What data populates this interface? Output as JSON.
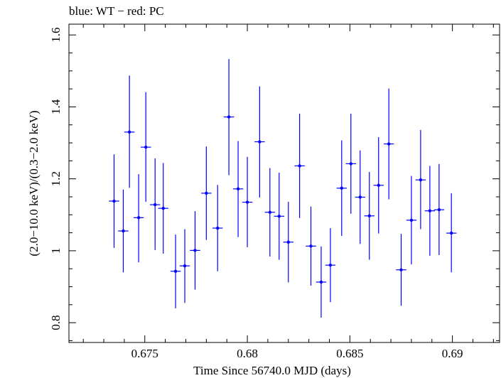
{
  "chart_data": {
    "type": "scatter",
    "title": "blue: WT − red: PC",
    "xlabel": "Time Since 56740.0 MJD (days)",
    "ylabel": "(2.0−10.0 keV)/(0.3−2.0 keV)",
    "xlim": [
      0.6713,
      0.6923
    ],
    "ylim": [
      0.745,
      1.63
    ],
    "x_ticks": [
      0.675,
      0.68,
      0.685,
      0.69
    ],
    "x_tick_labels": [
      "0.675",
      "0.68",
      "0.685",
      "0.69"
    ],
    "y_ticks": [
      0.8,
      1.0,
      1.2,
      1.4,
      1.6
    ],
    "y_tick_labels": [
      "0.8",
      "1",
      "1.2",
      "1.4",
      "1.6"
    ],
    "grid": false,
    "colors": {
      "WT": "#0000ff",
      "axes": "#000000"
    },
    "series": [
      {
        "name": "WT",
        "x_halfwidth": 0.00025,
        "points": [
          {
            "x": 0.6735,
            "y": 1.138,
            "err_lo": 1.008,
            "err_hi": 1.268
          },
          {
            "x": 0.67395,
            "y": 1.055,
            "err_lo": 0.94,
            "err_hi": 1.17
          },
          {
            "x": 0.67425,
            "y": 1.33,
            "err_lo": 1.175,
            "err_hi": 1.487
          },
          {
            "x": 0.6747,
            "y": 1.092,
            "err_lo": 0.968,
            "err_hi": 1.213
          },
          {
            "x": 0.67505,
            "y": 1.288,
            "err_lo": 1.136,
            "err_hi": 1.441
          },
          {
            "x": 0.6755,
            "y": 1.128,
            "err_lo": 1.002,
            "err_hi": 1.257
          },
          {
            "x": 0.6759,
            "y": 1.118,
            "err_lo": 0.992,
            "err_hi": 1.244
          },
          {
            "x": 0.6765,
            "y": 0.943,
            "err_lo": 0.84,
            "err_hi": 1.045
          },
          {
            "x": 0.67695,
            "y": 0.958,
            "err_lo": 0.855,
            "err_hi": 1.06
          },
          {
            "x": 0.67745,
            "y": 1.001,
            "err_lo": 0.892,
            "err_hi": 1.11
          },
          {
            "x": 0.678,
            "y": 1.16,
            "err_lo": 1.03,
            "err_hi": 1.29
          },
          {
            "x": 0.67855,
            "y": 1.063,
            "err_lo": 0.943,
            "err_hi": 1.183
          },
          {
            "x": 0.6791,
            "y": 1.372,
            "err_lo": 1.21,
            "err_hi": 1.533
          },
          {
            "x": 0.67955,
            "y": 1.172,
            "err_lo": 1.038,
            "err_hi": 1.305
          },
          {
            "x": 0.68,
            "y": 1.135,
            "err_lo": 1.01,
            "err_hi": 1.261
          },
          {
            "x": 0.6806,
            "y": 1.303,
            "err_lo": 1.148,
            "err_hi": 1.457
          },
          {
            "x": 0.6811,
            "y": 1.107,
            "err_lo": 0.984,
            "err_hi": 1.23
          },
          {
            "x": 0.68155,
            "y": 1.096,
            "err_lo": 0.975,
            "err_hi": 1.217
          },
          {
            "x": 0.682,
            "y": 1.024,
            "err_lo": 0.912,
            "err_hi": 1.136
          },
          {
            "x": 0.68255,
            "y": 1.236,
            "err_lo": 1.091,
            "err_hi": 1.381
          },
          {
            "x": 0.6831,
            "y": 1.013,
            "err_lo": 0.903,
            "err_hi": 1.123
          },
          {
            "x": 0.6836,
            "y": 0.913,
            "err_lo": 0.814,
            "err_hi": 1.012
          },
          {
            "x": 0.68405,
            "y": 0.96,
            "err_lo": 0.857,
            "err_hi": 1.063
          },
          {
            "x": 0.6846,
            "y": 1.174,
            "err_lo": 1.041,
            "err_hi": 1.307
          },
          {
            "x": 0.68505,
            "y": 1.242,
            "err_lo": 1.103,
            "err_hi": 1.381
          },
          {
            "x": 0.6855,
            "y": 1.149,
            "err_lo": 1.019,
            "err_hi": 1.279
          },
          {
            "x": 0.68595,
            "y": 1.097,
            "err_lo": 0.975,
            "err_hi": 1.219
          },
          {
            "x": 0.6864,
            "y": 1.182,
            "err_lo": 1.048,
            "err_hi": 1.316
          },
          {
            "x": 0.6869,
            "y": 1.297,
            "err_lo": 1.143,
            "err_hi": 1.451
          },
          {
            "x": 0.6875,
            "y": 0.947,
            "err_lo": 0.847,
            "err_hi": 1.047
          },
          {
            "x": 0.688,
            "y": 1.085,
            "err_lo": 0.962,
            "err_hi": 1.208
          },
          {
            "x": 0.68845,
            "y": 1.197,
            "err_lo": 1.06,
            "err_hi": 1.336
          },
          {
            "x": 0.6889,
            "y": 1.111,
            "err_lo": 0.986,
            "err_hi": 1.236
          },
          {
            "x": 0.68935,
            "y": 1.114,
            "err_lo": 0.988,
            "err_hi": 1.241
          },
          {
            "x": 0.68995,
            "y": 1.049,
            "err_lo": 0.94,
            "err_hi": 1.16
          }
        ]
      }
    ]
  }
}
